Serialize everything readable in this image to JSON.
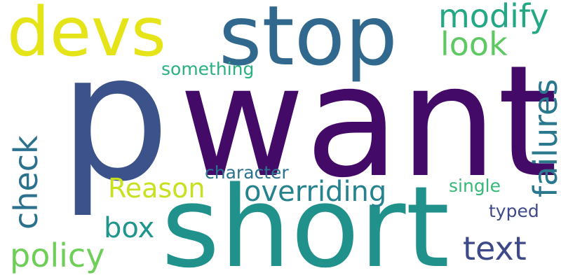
{
  "background": "#ffffff",
  "words": {
    "want": {
      "text": "want",
      "color": "#440a68"
    },
    "p": {
      "text": "p",
      "color": "#3b528b"
    },
    "short": {
      "text": "short",
      "color": "#21918c"
    },
    "stop": {
      "text": "stop",
      "color": "#31688e"
    },
    "devs": {
      "text": "devs",
      "color": "#e5e419"
    },
    "modify": {
      "text": "modify",
      "color": "#22a884"
    },
    "look": {
      "text": "look",
      "color": "#5ec962"
    },
    "something": {
      "text": "something",
      "color": "#2ab07f"
    },
    "failures": {
      "text": "failures",
      "color": "#2a788e",
      "orientation": "vertical"
    },
    "check": {
      "text": "check",
      "color": "#2c728e",
      "orientation": "vertical"
    },
    "character": {
      "text": "character",
      "color": "#2c728e"
    },
    "reason": {
      "text": "Reason",
      "color": "#c8e020"
    },
    "overriding": {
      "text": "overriding",
      "color": "#26828e"
    },
    "single": {
      "text": "single",
      "color": "#37b878"
    },
    "box": {
      "text": "box",
      "color": "#1f958b"
    },
    "typed": {
      "text": "typed",
      "color": "#3e4989"
    },
    "policy": {
      "text": "policy",
      "color": "#6ece58"
    },
    "text": {
      "text": "text",
      "color": "#3e4989"
    }
  }
}
